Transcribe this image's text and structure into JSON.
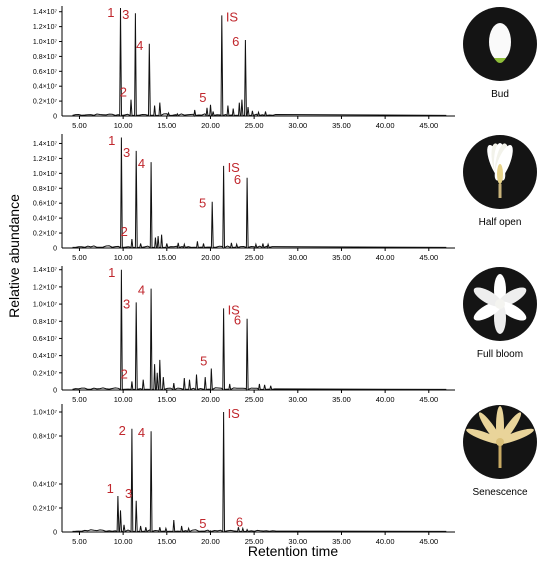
{
  "figure": {
    "ylabel": "Relative abundance",
    "xlabel": "Retention time",
    "x_ticks": [
      "5.00",
      "10.00",
      "15.00",
      "20.00",
      "25.00",
      "30.00",
      "35.00",
      "40.00",
      "45.00"
    ]
  },
  "colors": {
    "trace": "#111111",
    "peak_label": "#c0272d",
    "flower_bg": "#141414",
    "axis": "#000000"
  },
  "chart_data": [
    {
      "type": "line",
      "stage": "Bud",
      "xlim": [
        3.0,
        48.0
      ],
      "ylim": [
        0,
        1.45
      ],
      "y_unit": "x10^7",
      "y_ticks": [
        {
          "v": 0.2,
          "label": "0.2×10⁷"
        },
        {
          "v": 0.4,
          "label": "0.4×10⁷"
        },
        {
          "v": 0.6,
          "label": "0.6×10⁷"
        },
        {
          "v": 0.8,
          "label": "0.8×10⁷"
        },
        {
          "v": 1.0,
          "label": "1.0×10⁷"
        },
        {
          "v": 1.2,
          "label": "1.2×10⁷"
        },
        {
          "v": 1.4,
          "label": "1.4×10⁷"
        }
      ],
      "major_peaks": [
        {
          "label": "1",
          "x": 9.7,
          "y": 1.45
        },
        {
          "label": "2",
          "x": 10.9,
          "y": 0.22
        },
        {
          "label": "3",
          "x": 11.4,
          "y": 1.38
        },
        {
          "label": "4",
          "x": 13.0,
          "y": 0.97
        },
        {
          "label": "5",
          "x": 20.0,
          "y": 0.15
        },
        {
          "label": "IS",
          "x": 21.3,
          "y": 1.35
        },
        {
          "label": "6",
          "x": 24.0,
          "y": 1.02
        }
      ],
      "minor_peaks": [
        {
          "x": 13.6,
          "y": 0.14
        },
        {
          "x": 14.2,
          "y": 0.18
        },
        {
          "x": 15.2,
          "y": 0.04
        },
        {
          "x": 16.2,
          "y": 0.03
        },
        {
          "x": 18.2,
          "y": 0.08
        },
        {
          "x": 19.6,
          "y": 0.11
        },
        {
          "x": 20.3,
          "y": 0.06
        },
        {
          "x": 22.0,
          "y": 0.14
        },
        {
          "x": 22.6,
          "y": 0.1
        },
        {
          "x": 23.3,
          "y": 0.18
        },
        {
          "x": 23.6,
          "y": 0.22
        },
        {
          "x": 24.3,
          "y": 0.12
        },
        {
          "x": 24.8,
          "y": 0.07
        },
        {
          "x": 25.5,
          "y": 0.05
        },
        {
          "x": 26.3,
          "y": 0.06
        }
      ]
    },
    {
      "type": "line",
      "stage": "Half open",
      "xlim": [
        3.0,
        48.0
      ],
      "ylim": [
        0,
        1.5
      ],
      "y_unit": "x10^7",
      "y_ticks": [
        {
          "v": 0.2,
          "label": "0.2×10⁷"
        },
        {
          "v": 0.4,
          "label": "0.4×10⁷"
        },
        {
          "v": 0.6,
          "label": "0.6×10⁷"
        },
        {
          "v": 0.8,
          "label": "0.8×10⁷"
        },
        {
          "v": 1.0,
          "label": "1.0×10⁷"
        },
        {
          "v": 1.2,
          "label": "1.2×10⁷"
        },
        {
          "v": 1.4,
          "label": "1.4×10⁷"
        }
      ],
      "major_peaks": [
        {
          "label": "1",
          "x": 9.8,
          "y": 1.48
        },
        {
          "label": "2",
          "x": 11.0,
          "y": 0.12
        },
        {
          "label": "3",
          "x": 11.5,
          "y": 1.3
        },
        {
          "label": "4",
          "x": 13.2,
          "y": 1.15
        },
        {
          "label": "5",
          "x": 20.2,
          "y": 0.62
        },
        {
          "label": "IS",
          "x": 21.5,
          "y": 1.1
        },
        {
          "label": "6",
          "x": 24.2,
          "y": 0.94
        }
      ],
      "minor_peaks": [
        {
          "x": 12.0,
          "y": 0.06
        },
        {
          "x": 13.7,
          "y": 0.14
        },
        {
          "x": 14.0,
          "y": 0.16
        },
        {
          "x": 14.4,
          "y": 0.18
        },
        {
          "x": 15.0,
          "y": 0.06
        },
        {
          "x": 16.3,
          "y": 0.07
        },
        {
          "x": 17.0,
          "y": 0.05
        },
        {
          "x": 18.5,
          "y": 0.09
        },
        {
          "x": 19.2,
          "y": 0.06
        },
        {
          "x": 22.4,
          "y": 0.07
        },
        {
          "x": 23.0,
          "y": 0.05
        },
        {
          "x": 25.2,
          "y": 0.05
        },
        {
          "x": 26.0,
          "y": 0.06
        },
        {
          "x": 26.6,
          "y": 0.05
        }
      ]
    },
    {
      "type": "line",
      "stage": "Full bloom",
      "xlim": [
        3.0,
        48.0
      ],
      "ylim": [
        0,
        1.42
      ],
      "y_unit": "x10^7",
      "y_ticks": [
        {
          "v": 0.2,
          "label": "0.2×10⁷"
        },
        {
          "v": 0.4,
          "label": "0.4×10⁷"
        },
        {
          "v": 0.6,
          "label": "0.6×10⁷"
        },
        {
          "v": 0.8,
          "label": "0.8×10⁷"
        },
        {
          "v": 1.0,
          "label": "1.0×10⁷"
        },
        {
          "v": 1.2,
          "label": "1.2×10⁷"
        },
        {
          "v": 1.4,
          "label": "1.4×10⁷"
        }
      ],
      "major_peaks": [
        {
          "label": "1",
          "x": 9.8,
          "y": 1.4
        },
        {
          "label": "2",
          "x": 11.0,
          "y": 0.1
        },
        {
          "label": "3",
          "x": 11.5,
          "y": 1.02
        },
        {
          "label": "4",
          "x": 13.2,
          "y": 1.18
        },
        {
          "label": "5",
          "x": 20.1,
          "y": 0.25
        },
        {
          "label": "IS",
          "x": 21.5,
          "y": 0.95
        },
        {
          "label": "6",
          "x": 24.2,
          "y": 0.83
        }
      ],
      "minor_peaks": [
        {
          "x": 12.3,
          "y": 0.12
        },
        {
          "x": 13.6,
          "y": 0.3
        },
        {
          "x": 13.9,
          "y": 0.2
        },
        {
          "x": 14.2,
          "y": 0.35
        },
        {
          "x": 14.6,
          "y": 0.15
        },
        {
          "x": 15.8,
          "y": 0.08
        },
        {
          "x": 17.0,
          "y": 0.14
        },
        {
          "x": 17.6,
          "y": 0.12
        },
        {
          "x": 18.4,
          "y": 0.18
        },
        {
          "x": 19.4,
          "y": 0.15
        },
        {
          "x": 22.2,
          "y": 0.07
        },
        {
          "x": 25.6,
          "y": 0.07
        },
        {
          "x": 26.2,
          "y": 0.06
        },
        {
          "x": 26.9,
          "y": 0.05
        }
      ]
    },
    {
      "type": "line",
      "stage": "Senescence",
      "xlim": [
        3.0,
        48.0
      ],
      "ylim": [
        0,
        1.05
      ],
      "y_unit": "x10^7",
      "y_ticks": [
        {
          "v": 0.2,
          "label": "0.2×10⁷"
        },
        {
          "v": 0.4,
          "label": "0.4×10⁷"
        },
        {
          "v": 0.8,
          "label": "0.8×10⁷"
        },
        {
          "v": 1.0,
          "label": "1.0×10⁷"
        }
      ],
      "major_peaks": [
        {
          "label": "1",
          "x": 9.4,
          "y": 0.3
        },
        {
          "label": "2",
          "x": 11.0,
          "y": 0.86
        },
        {
          "label": "3",
          "x": 11.5,
          "y": 0.26
        },
        {
          "label": "4",
          "x": 13.2,
          "y": 0.84
        },
        {
          "label": "5",
          "x": 20.0,
          "y": 0.01
        },
        {
          "label": "IS",
          "x": 21.5,
          "y": 1.0
        },
        {
          "label": "6",
          "x": 24.2,
          "y": 0.02
        }
      ],
      "minor_peaks": [
        {
          "x": 9.7,
          "y": 0.18
        },
        {
          "x": 10.1,
          "y": 0.06
        },
        {
          "x": 12.0,
          "y": 0.05
        },
        {
          "x": 12.6,
          "y": 0.04
        },
        {
          "x": 14.2,
          "y": 0.04
        },
        {
          "x": 14.9,
          "y": 0.03
        },
        {
          "x": 15.8,
          "y": 0.1
        },
        {
          "x": 16.7,
          "y": 0.05
        },
        {
          "x": 17.5,
          "y": 0.03
        },
        {
          "x": 23.2,
          "y": 0.04
        },
        {
          "x": 23.7,
          "y": 0.03
        }
      ]
    }
  ]
}
